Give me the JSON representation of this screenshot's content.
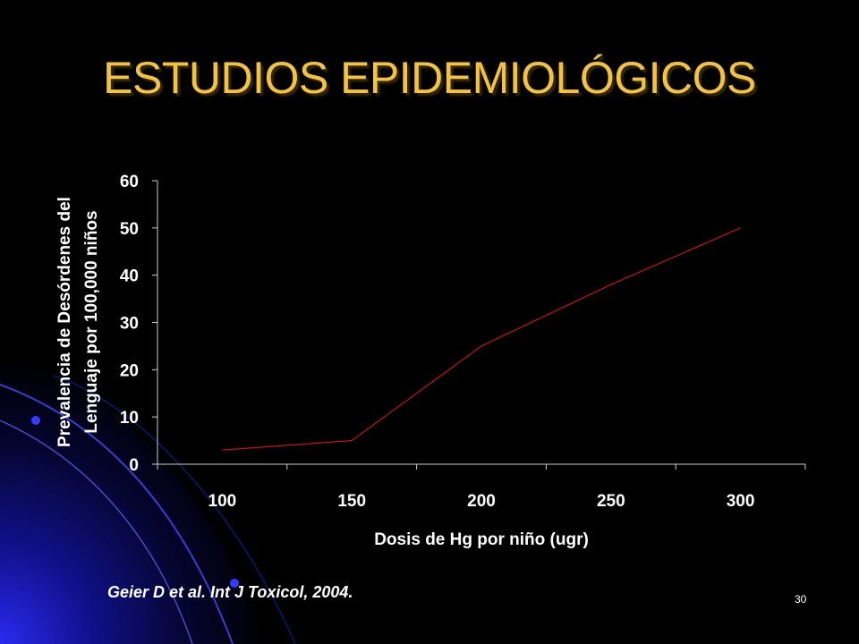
{
  "slide": {
    "title": "ESTUDIOS EPIDEMIOLÓGICOS",
    "citation": "Geier D et al. Int J Toxicol, 2004.",
    "slide_number": "30",
    "accent_color": "#f0c24a",
    "background_color": "#000000",
    "swoosh_color": "#1a1ad0"
  },
  "chart_data": {
    "type": "line",
    "x": [
      100,
      150,
      200,
      250,
      300
    ],
    "xticks": [
      "100",
      "150",
      "200",
      "250",
      "300"
    ],
    "yticks": [
      "0",
      "10",
      "20",
      "30",
      "40",
      "50",
      "60"
    ],
    "series": [
      {
        "values": [
          3,
          5,
          25,
          38,
          50
        ],
        "color": "#c0141c"
      }
    ],
    "xlabel": "Dosis de Hg por niño (ugr)",
    "ylabel_lines": [
      "Prevalencia de Desórdenes del",
      "Lenguaje por 100,000 niños"
    ],
    "ylim": [
      0,
      60
    ],
    "grid": false,
    "legend": "none"
  }
}
